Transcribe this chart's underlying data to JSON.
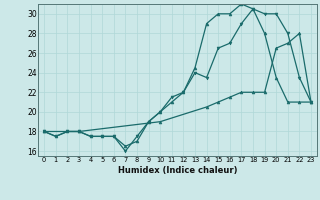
{
  "xlabel": "Humidex (Indice chaleur)",
  "xlim": [
    -0.5,
    23.5
  ],
  "ylim": [
    15.5,
    31.0
  ],
  "xticks": [
    0,
    1,
    2,
    3,
    4,
    5,
    6,
    7,
    8,
    9,
    10,
    11,
    12,
    13,
    14,
    15,
    16,
    17,
    18,
    19,
    20,
    21,
    22,
    23
  ],
  "yticks": [
    16,
    18,
    20,
    22,
    24,
    26,
    28,
    30
  ],
  "bg_color": "#cce8e8",
  "grid_color": "#b0d8d8",
  "line_color": "#1a6b6b",
  "line1_x": [
    0,
    1,
    2,
    3,
    4,
    5,
    6,
    7,
    8,
    9,
    10,
    11,
    12,
    13,
    14,
    15,
    16,
    17,
    18,
    19,
    20,
    21,
    22,
    23
  ],
  "line1_y": [
    18,
    17.5,
    18,
    18,
    17.5,
    17.5,
    17.5,
    16,
    17.5,
    19,
    20,
    21.5,
    22,
    24,
    23.5,
    26.5,
    27,
    29,
    30.5,
    30,
    30,
    28,
    23.5,
    21
  ],
  "line2_x": [
    0,
    1,
    2,
    3,
    4,
    5,
    6,
    7,
    8,
    9,
    10,
    11,
    12,
    13,
    14,
    15,
    16,
    17,
    18,
    19,
    20,
    21,
    22,
    23
  ],
  "line2_y": [
    18,
    17.5,
    18,
    18,
    17.5,
    17.5,
    17.5,
    16.5,
    17,
    19,
    20,
    21,
    22,
    24.5,
    29,
    30,
    30,
    31,
    30.5,
    28,
    23.5,
    21,
    21,
    21
  ],
  "line3_x": [
    0,
    3,
    10,
    14,
    15,
    16,
    17,
    18,
    19,
    20,
    21,
    22,
    23
  ],
  "line3_y": [
    18,
    18,
    19,
    20.5,
    21,
    21.5,
    22,
    22,
    22,
    26.5,
    27,
    28,
    21
  ]
}
